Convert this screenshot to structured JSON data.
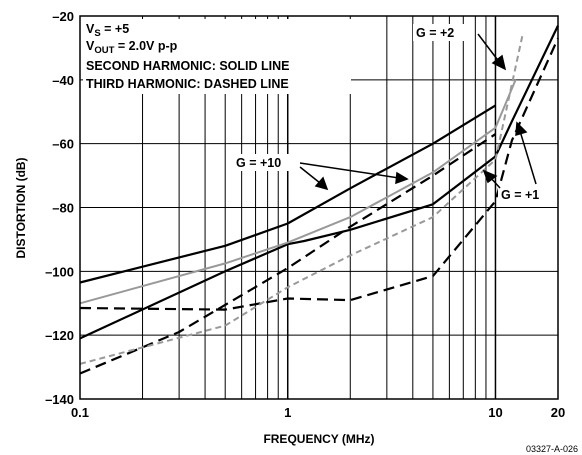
{
  "chart_data": {
    "type": "line",
    "xlabel": "FREQUENCY (MHz)",
    "ylabel": "DISTORTION (dB)",
    "xscale": "log",
    "xlim": [
      0.1,
      20
    ],
    "ylim": [
      -140,
      -20
    ],
    "x_ticks": [
      {
        "value": 0.1,
        "label": "0.1"
      },
      {
        "value": 1,
        "label": "1"
      },
      {
        "value": 10,
        "label": "10"
      },
      {
        "value": 20,
        "label": "20"
      }
    ],
    "y_ticks": [
      {
        "value": -20,
        "label": "–20"
      },
      {
        "value": -40,
        "label": "–40"
      },
      {
        "value": -60,
        "label": "–60"
      },
      {
        "value": -80,
        "label": "–80"
      },
      {
        "value": -100,
        "label": "–100"
      },
      {
        "value": -120,
        "label": "–120"
      },
      {
        "value": -140,
        "label": "–140"
      }
    ],
    "grid": true,
    "notes": {
      "line1_main": "V",
      "line1_sub": "S",
      "line1_rest": " = +5",
      "line2_main": "V",
      "line2_sub": "OUT",
      "line2_rest": " = 2.0V p-p",
      "line3": "SECOND HARMONIC: SOLID LINE",
      "line4": "THIRD HARMONIC: DASHED LINE"
    },
    "gain_labels": {
      "g2": "G = +2",
      "g10": "G = +10",
      "g1": "G = +1"
    },
    "figure_id": "03327-A-026",
    "series": [
      {
        "color": "#000000",
        "dash": "solid",
        "x": [
          0.1,
          0.5,
          1,
          2,
          5,
          10
        ],
        "y": [
          -103.5,
          -92,
          -85,
          -74,
          -60,
          -48
        ]
      },
      {
        "color": "#000000",
        "dash": "solid",
        "x": [
          0.1,
          0.5,
          1,
          1.2,
          2,
          5,
          10,
          12,
          20
        ],
        "y": [
          -121,
          -100,
          -91.5,
          -90.5,
          -87,
          -79,
          -64,
          -53,
          -23
        ]
      },
      {
        "color": "#999999",
        "dash": "solid",
        "x": [
          0.1,
          0.5,
          1,
          2,
          5,
          10,
          12.5
        ],
        "y": [
          -110,
          -97.5,
          -91,
          -83,
          -69,
          -55,
          -40
        ]
      },
      {
        "color": "#000000",
        "dash": "dashed",
        "x": [
          0.1,
          0.3,
          1,
          2,
          5,
          10
        ],
        "y": [
          -132,
          -119,
          -99,
          -86,
          -70,
          -57
        ]
      },
      {
        "color": "#000000",
        "dash": "dashed",
        "x": [
          0.1,
          0.5,
          1,
          2,
          5,
          10,
          12,
          20
        ],
        "y": [
          -111.5,
          -112,
          -108.5,
          -109,
          -101.5,
          -78,
          -59,
          -27
        ]
      },
      {
        "color": "#999999",
        "dash": "dashed",
        "x": [
          0.1,
          0.5,
          1,
          2,
          5,
          10,
          13.5
        ],
        "y": [
          -129,
          -117,
          -105,
          -95,
          -83,
          -65,
          -26
        ]
      }
    ]
  }
}
